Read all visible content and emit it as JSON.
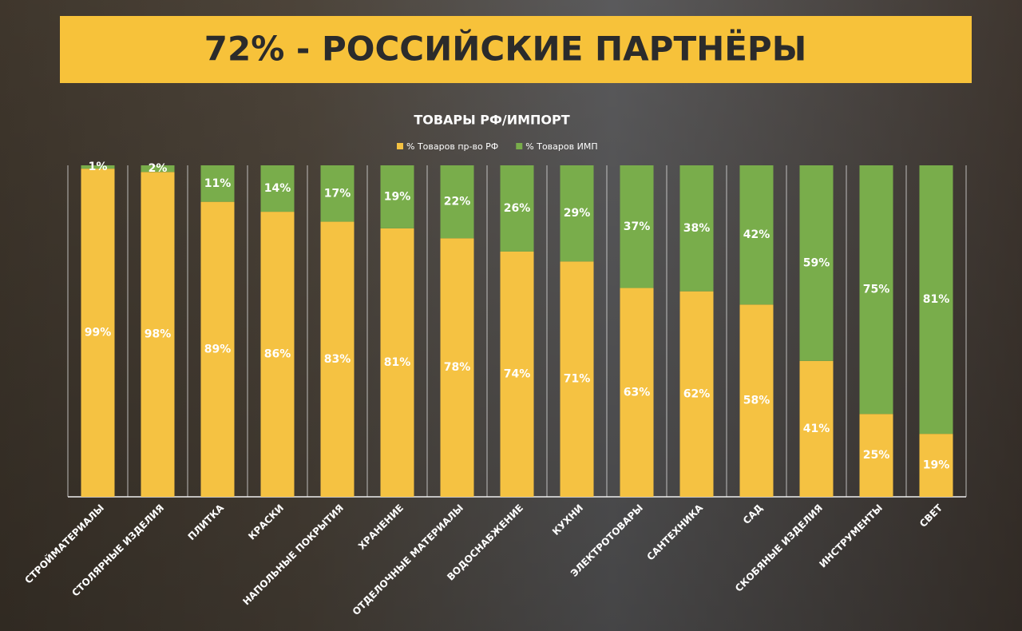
{
  "heading": "72% - РОССИЙСКИЕ ПАРТНЁРЫ",
  "chart_data": {
    "type": "stacked_bar",
    "title": "ТОВАРЫ РФ/ИМПОРТ",
    "categories": [
      "СТРОЙМАТЕРИАЛЫ",
      "СТОЛЯРНЫЕ ИЗДЕЛИЯ",
      "ПЛИТКА",
      "КРАСКИ",
      "НАПОЛЬНЫЕ ПОКРЫТИЯ",
      "ХРАНЕНИЕ",
      "ОТДЕЛОЧНЫЕ МАТЕРИАЛЫ",
      "ВОДОСНАБЖЕНИЕ",
      "КУХНИ",
      "ЭЛЕКТРОТОВАРЫ",
      "САНТЕХНИКА",
      "САД",
      "СКОБЯНЫЕ ИЗДЕЛИЯ",
      "ИНСТРУМЕНТЫ",
      "СВЕТ"
    ],
    "series": [
      {
        "name": "% Товаров пр-во РФ",
        "color": "#f5c242",
        "values": [
          99,
          98,
          89,
          86,
          83,
          81,
          78,
          74,
          71,
          63,
          62,
          58,
          41,
          25,
          19
        ],
        "value_labels": [
          "99%",
          "98%",
          "89%",
          "86%",
          "83%",
          "81%",
          "78%",
          "74%",
          "71%",
          "63%",
          "62%",
          "58%",
          "41%",
          "25%",
          "19%"
        ]
      },
      {
        "name": "% Товаров ИМП",
        "color": "#79ad4b",
        "values": [
          1,
          2,
          11,
          14,
          17,
          19,
          22,
          26,
          29,
          37,
          38,
          42,
          59,
          75,
          81
        ],
        "value_labels": [
          "1%",
          "2%",
          "11%",
          "14%",
          "17%",
          "19%",
          "22%",
          "26%",
          "29%",
          "37%",
          "38%",
          "42%",
          "59%",
          "75%",
          "81%"
        ]
      }
    ],
    "ylim": [
      0,
      100
    ],
    "legend": "top"
  }
}
